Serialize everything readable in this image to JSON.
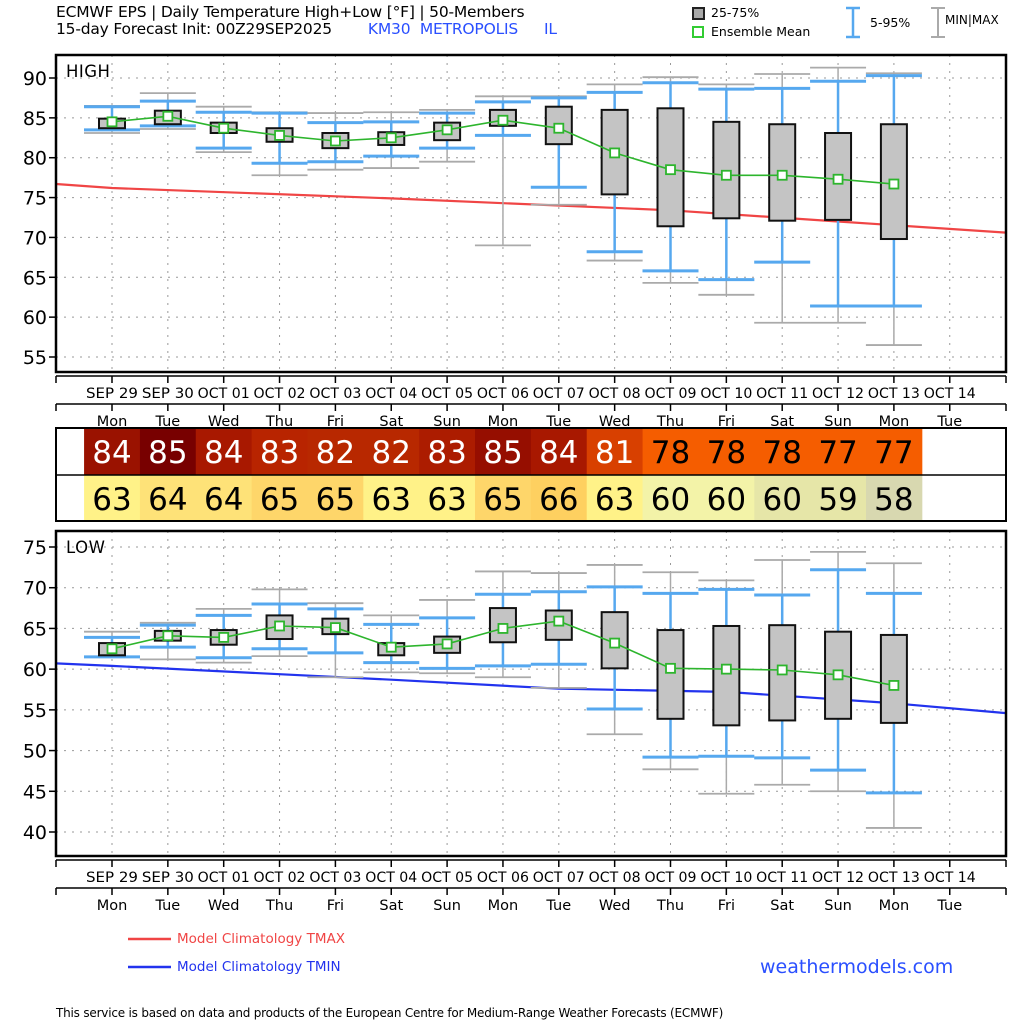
{
  "header": {
    "title": "ECMWF EPS | Daily Temperature High+Low [°F] | 50-Members",
    "init": "15-day Forecast Init: 00Z29SEP2025",
    "station": "KM30",
    "location": "METROPOLIS",
    "state": "IL"
  },
  "legend": {
    "box_label": "25-75%",
    "mean_label": "Ensemble Mean",
    "whisker_label": "5-95%",
    "minmax_label": "MIN|MAX"
  },
  "footer": {
    "tmax_label": "Model Climatology TMAX",
    "tmin_label": "Model Climatology TMIN",
    "brand": "weathermodels.com",
    "disclaimer": "This service is based on data and products of the European Centre for Medium-Range Weather Forecasts (ECMWF)"
  },
  "colors": {
    "box_fill": "#c4c4c4",
    "box_edge": "#111111",
    "mean": "#2db52d",
    "whisker_5_95": "#56a8ef",
    "minmax": "#aaaaaa",
    "tmax_clim": "#f04545",
    "tmin_clim": "#2233ee",
    "brand": "#2a4fff"
  },
  "chart_data": [
    {
      "type": "box",
      "panel_label": "HIGH",
      "ylabel": "°F",
      "ylim": [
        53,
        92
      ],
      "yticks": [
        55,
        60,
        65,
        70,
        75,
        80,
        85,
        90
      ],
      "grid": true,
      "categories": [
        "SEP 29",
        "SEP 30",
        "OCT 01",
        "OCT 02",
        "OCT 03",
        "OCT 04",
        "OCT 05",
        "OCT 06",
        "OCT 07",
        "OCT 08",
        "OCT 09",
        "OCT 10",
        "OCT 11",
        "OCT 12",
        "OCT 13",
        "OCT 14"
      ],
      "weekdays": [
        "Mon",
        "Tue",
        "Wed",
        "Thu",
        "Fri",
        "Sat",
        "Sun",
        "Mon",
        "Tue",
        "Wed",
        "Thu",
        "Fri",
        "Sat",
        "Sun",
        "Mon",
        "Tue"
      ],
      "members": [
        {
          "q25": 83.7,
          "q75": 84.9,
          "mean": 84.5,
          "p5": 83.5,
          "p95": 86.4,
          "min": 83.1,
          "max": 86.5
        },
        {
          "q25": 84.2,
          "q75": 85.9,
          "mean": 85.2,
          "p5": 84.0,
          "p95": 87.1,
          "min": 83.6,
          "max": 88.1
        },
        {
          "q25": 83.1,
          "q75": 84.4,
          "mean": 83.7,
          "p5": 81.2,
          "p95": 85.7,
          "min": 80.7,
          "max": 86.4
        },
        {
          "q25": 82.0,
          "q75": 83.7,
          "mean": 82.8,
          "p5": 79.3,
          "p95": 85.6,
          "min": 77.8,
          "max": 85.7
        },
        {
          "q25": 81.2,
          "q75": 83.1,
          "mean": 82.1,
          "p5": 79.5,
          "p95": 84.4,
          "min": 78.5,
          "max": 85.6
        },
        {
          "q25": 81.6,
          "q75": 83.2,
          "mean": 82.5,
          "p5": 80.2,
          "p95": 84.5,
          "min": 78.7,
          "max": 85.7
        },
        {
          "q25": 82.2,
          "q75": 84.4,
          "mean": 83.5,
          "p5": 81.2,
          "p95": 85.6,
          "min": 79.5,
          "max": 86.0
        },
        {
          "q25": 84.0,
          "q75": 86.0,
          "mean": 84.7,
          "p5": 82.8,
          "p95": 87.0,
          "min": 69.0,
          "max": 87.7
        },
        {
          "q25": 81.7,
          "q75": 86.4,
          "mean": 83.7,
          "p5": 76.3,
          "p95": 87.5,
          "min": 74.1,
          "max": 87.7
        },
        {
          "q25": 75.4,
          "q75": 86.0,
          "mean": 80.6,
          "p5": 68.2,
          "p95": 88.2,
          "min": 67.1,
          "max": 89.2
        },
        {
          "q25": 71.4,
          "q75": 86.2,
          "mean": 78.5,
          "p5": 65.8,
          "p95": 89.4,
          "min": 64.3,
          "max": 90.1
        },
        {
          "q25": 72.4,
          "q75": 84.5,
          "mean": 77.8,
          "p5": 64.7,
          "p95": 88.6,
          "min": 62.8,
          "max": 89.2
        },
        {
          "q25": 72.1,
          "q75": 84.2,
          "mean": 77.8,
          "p5": 66.9,
          "p95": 88.7,
          "min": 59.3,
          "max": 90.5
        },
        {
          "q25": 72.2,
          "q75": 83.1,
          "mean": 77.3,
          "p5": 61.4,
          "p95": 89.6,
          "min": 59.3,
          "max": 91.3
        },
        {
          "q25": 69.8,
          "q75": 84.2,
          "mean": 76.7,
          "p5": 61.4,
          "p95": 90.3,
          "min": 56.5,
          "max": 90.6
        }
      ],
      "climatology": {
        "name": "Model Climatology TMAX",
        "x_day_index": [
          -1,
          0,
          5,
          10,
          13,
          16
        ],
        "values": [
          76.7,
          76.2,
          74.9,
          73.4,
          72.0,
          70.6
        ]
      }
    },
    {
      "type": "table",
      "rows": [
        {
          "name": "high",
          "values": [
            84,
            85,
            84,
            83,
            82,
            82,
            83,
            85,
            84,
            81,
            78,
            78,
            78,
            77,
            77
          ],
          "colors": [
            "#9a1200",
            "#780000",
            "#a81800",
            "#b82400",
            "#b82800",
            "#b82800",
            "#ac1c00",
            "#960e00",
            "#a81800",
            "#d84000",
            "#f55d00",
            "#f55d00",
            "#f55d00",
            "#f55d00",
            "#f55d00"
          ],
          "text_colors": [
            "#fff",
            "#fff",
            "#fff",
            "#fff",
            "#fff",
            "#fff",
            "#fff",
            "#fff",
            "#fff",
            "#fff",
            "#000",
            "#000",
            "#000",
            "#000",
            "#000"
          ]
        },
        {
          "name": "low",
          "values": [
            63,
            64,
            64,
            65,
            65,
            63,
            63,
            65,
            66,
            63,
            60,
            60,
            60,
            59,
            58
          ],
          "colors": [
            "#fff288",
            "#fee278",
            "#fee278",
            "#fed66a",
            "#fed66a",
            "#fff288",
            "#fff288",
            "#fed66a",
            "#fed060",
            "#fff288",
            "#f3f3a8",
            "#f3f3a8",
            "#e6e6a8",
            "#e6e6a8",
            "#d8d8b0"
          ]
        }
      ]
    },
    {
      "type": "box",
      "panel_label": "LOW",
      "ylabel": "°F",
      "ylim": [
        38,
        77
      ],
      "yticks": [
        40,
        45,
        50,
        55,
        60,
        65,
        70,
        75
      ],
      "grid": true,
      "categories": [
        "SEP 29",
        "SEP 30",
        "OCT 01",
        "OCT 02",
        "OCT 03",
        "OCT 04",
        "OCT 05",
        "OCT 06",
        "OCT 07",
        "OCT 08",
        "OCT 09",
        "OCT 10",
        "OCT 11",
        "OCT 12",
        "OCT 13",
        "OCT 14"
      ],
      "weekdays": [
        "Mon",
        "Tue",
        "Wed",
        "Thu",
        "Fri",
        "Sat",
        "Sun",
        "Mon",
        "Tue",
        "Wed",
        "Thu",
        "Fri",
        "Sat",
        "Sun",
        "Mon",
        "Tue"
      ],
      "members": [
        {
          "q25": 61.7,
          "q75": 63.2,
          "mean": 62.5,
          "p5": 61.5,
          "p95": 63.9,
          "min": 61.5,
          "max": 64.6
        },
        {
          "q25": 63.5,
          "q75": 64.7,
          "mean": 64.1,
          "p5": 62.7,
          "p95": 65.4,
          "min": 61.2,
          "max": 65.7
        },
        {
          "q25": 63.0,
          "q75": 64.8,
          "mean": 63.9,
          "p5": 61.4,
          "p95": 66.6,
          "min": 60.8,
          "max": 67.4
        },
        {
          "q25": 63.7,
          "q75": 66.6,
          "mean": 65.3,
          "p5": 62.5,
          "p95": 68.0,
          "min": 61.6,
          "max": 69.8
        },
        {
          "q25": 64.3,
          "q75": 66.2,
          "mean": 65.1,
          "p5": 62.0,
          "p95": 67.4,
          "min": 59.0,
          "max": 68.1
        },
        {
          "q25": 61.7,
          "q75": 63.2,
          "mean": 62.7,
          "p5": 60.8,
          "p95": 65.5,
          "min": 59.6,
          "max": 66.6
        },
        {
          "q25": 62.0,
          "q75": 64.0,
          "mean": 63.1,
          "p5": 60.1,
          "p95": 66.3,
          "min": 59.5,
          "max": 68.5
        },
        {
          "q25": 63.3,
          "q75": 67.5,
          "mean": 65.0,
          "p5": 60.4,
          "p95": 69.2,
          "min": 59.0,
          "max": 72.0
        },
        {
          "q25": 63.6,
          "q75": 67.2,
          "mean": 65.9,
          "p5": 60.6,
          "p95": 69.5,
          "min": 57.7,
          "max": 71.8
        },
        {
          "q25": 60.1,
          "q75": 67.0,
          "mean": 63.2,
          "p5": 55.1,
          "p95": 70.1,
          "min": 52.0,
          "max": 72.8
        },
        {
          "q25": 53.9,
          "q75": 64.8,
          "mean": 60.1,
          "p5": 49.2,
          "p95": 69.3,
          "min": 47.7,
          "max": 71.9
        },
        {
          "q25": 53.1,
          "q75": 65.3,
          "mean": 60.0,
          "p5": 49.3,
          "p95": 69.8,
          "min": 44.7,
          "max": 70.9
        },
        {
          "q25": 53.7,
          "q75": 65.4,
          "mean": 59.9,
          "p5": 49.1,
          "p95": 69.1,
          "min": 45.8,
          "max": 73.4
        },
        {
          "q25": 53.9,
          "q75": 64.6,
          "mean": 59.3,
          "p5": 47.6,
          "p95": 72.2,
          "min": 45.0,
          "max": 74.4
        },
        {
          "q25": 53.4,
          "q75": 64.2,
          "mean": 58.0,
          "p5": 44.8,
          "p95": 69.3,
          "min": 40.5,
          "max": 73.0
        }
      ],
      "climatology": {
        "name": "Model Climatology TMIN",
        "x_day_index": [
          -1,
          0,
          5,
          8,
          11,
          14,
          16
        ],
        "values": [
          60.7,
          60.4,
          58.7,
          57.6,
          57.2,
          55.8,
          54.6
        ]
      }
    }
  ]
}
